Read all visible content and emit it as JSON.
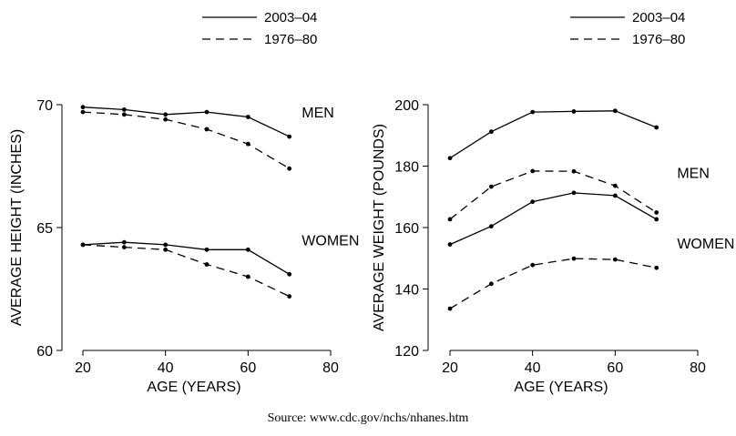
{
  "chart_data": [
    {
      "type": "line",
      "id": "height",
      "xlabel": "AGE (YEARS)",
      "ylabel": "AVERAGE HEIGHT (INCHES)",
      "xlim": [
        20,
        80
      ],
      "ylim": [
        60,
        70
      ],
      "xticks": [
        20,
        40,
        60,
        80
      ],
      "yticks": [
        60,
        65,
        70
      ],
      "grid": false,
      "legend": [
        {
          "label": "2003–04",
          "style": "solid"
        },
        {
          "label": "1976–80",
          "style": "dashed"
        }
      ],
      "x": [
        20,
        30,
        40,
        50,
        60,
        70
      ],
      "series": [
        {
          "name": "Men 2003–04",
          "group": "MEN",
          "style": "solid",
          "values": [
            69.9,
            69.8,
            69.6,
            69.7,
            69.5,
            68.7
          ]
        },
        {
          "name": "Men 1976–80",
          "group": "MEN",
          "style": "dashed",
          "values": [
            69.7,
            69.6,
            69.4,
            69.0,
            68.4,
            67.4
          ]
        },
        {
          "name": "Women 2003–04",
          "group": "WOMEN",
          "style": "solid",
          "values": [
            64.3,
            64.4,
            64.3,
            64.1,
            64.1,
            63.1
          ]
        },
        {
          "name": "Women 1976–80",
          "group": "WOMEN",
          "style": "dashed",
          "values": [
            64.3,
            64.2,
            64.1,
            63.5,
            63.0,
            62.2
          ]
        }
      ],
      "annotations": [
        {
          "text": "MEN",
          "x": 73,
          "y": 69.7
        },
        {
          "text": "WOMEN",
          "x": 73,
          "y": 64.5
        }
      ]
    },
    {
      "type": "line",
      "id": "weight",
      "xlabel": "AGE (YEARS)",
      "ylabel": "AVERAGE WEIGHT (POUNDS)",
      "xlim": [
        20,
        80
      ],
      "ylim": [
        120,
        200
      ],
      "xticks": [
        20,
        40,
        60,
        80
      ],
      "yticks": [
        120,
        140,
        160,
        180,
        200
      ],
      "grid": false,
      "legend": [
        {
          "label": "2003–04",
          "style": "solid"
        },
        {
          "label": "1976–80",
          "style": "dashed"
        }
      ],
      "x": [
        20,
        30,
        40,
        50,
        60,
        70
      ],
      "series": [
        {
          "name": "Men 2003–04",
          "group": "MEN",
          "style": "solid",
          "values": [
            182.6,
            191.2,
            197.6,
            197.8,
            198.0,
            192.6
          ]
        },
        {
          "name": "Men 1976–80",
          "group": "MEN",
          "style": "dashed",
          "values": [
            162.7,
            173.3,
            178.4,
            178.3,
            173.6,
            164.9
          ]
        },
        {
          "name": "Women 2003–04",
          "group": "WOMEN",
          "style": "solid",
          "values": [
            154.5,
            160.4,
            168.4,
            171.3,
            170.4,
            162.7
          ]
        },
        {
          "name": "Women 1976–80",
          "group": "WOMEN",
          "style": "dashed",
          "values": [
            133.6,
            141.7,
            147.8,
            149.9,
            149.6,
            146.9
          ]
        }
      ],
      "annotations": [
        {
          "text": "MEN",
          "x": 75,
          "y": 178
        },
        {
          "text": "WOMEN",
          "x": 75,
          "y": 155
        }
      ]
    }
  ],
  "source": "Source: www.cdc.gov/nchs/nhanes.htm"
}
